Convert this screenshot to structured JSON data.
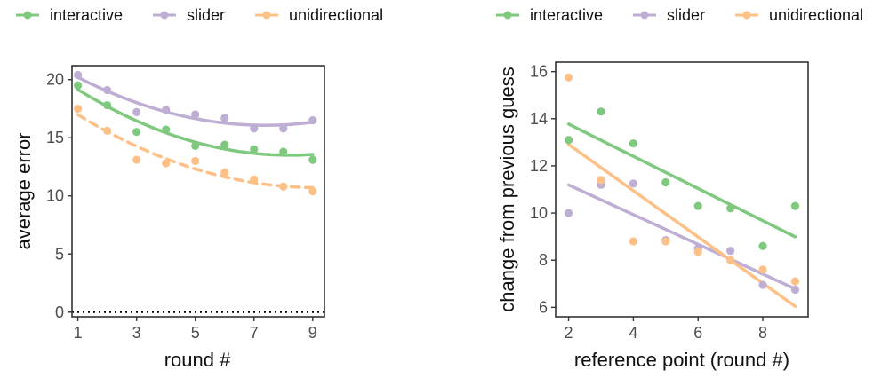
{
  "colors": {
    "interactive": "#7fc97f",
    "slider": "#beaed4",
    "unidirectional": "#fdc086"
  },
  "chart_data": [
    {
      "type": "scatter",
      "xlabel": "round #",
      "ylabel": "average error",
      "xlim": [
        0.8,
        9.4
      ],
      "ylim": [
        -0.4,
        21.2
      ],
      "xticks": [
        "1",
        "3",
        "5",
        "7",
        "9"
      ],
      "yticks": [
        "0",
        "5",
        "10",
        "15",
        "20"
      ],
      "reference_line": {
        "y": 0,
        "style": "dotted"
      },
      "legend": {
        "placement": "top",
        "entries": [
          "interactive",
          "slider",
          "unidirectional"
        ]
      },
      "series": [
        {
          "name": "interactive",
          "x": [
            1,
            2,
            3,
            4,
            5,
            6,
            7,
            8,
            9
          ],
          "y": [
            19.5,
            17.8,
            15.5,
            15.7,
            14.3,
            14.4,
            14.0,
            13.8,
            13.1
          ],
          "fit": "quadratic",
          "line_style": "solid"
        },
        {
          "name": "slider",
          "x": [
            1,
            2,
            3,
            4,
            5,
            6,
            7,
            8,
            9
          ],
          "y": [
            20.4,
            19.1,
            17.2,
            17.4,
            17.0,
            16.7,
            15.8,
            15.8,
            16.5
          ],
          "fit": "quadratic",
          "line_style": "solid"
        },
        {
          "name": "unidirectional",
          "x": [
            1,
            2,
            3,
            4,
            5,
            6,
            7,
            8,
            9
          ],
          "y": [
            17.5,
            15.6,
            13.1,
            12.8,
            13.0,
            12.0,
            11.4,
            10.8,
            10.4
          ],
          "fit": "quadratic",
          "line_style": "dashed"
        }
      ]
    },
    {
      "type": "scatter",
      "xlabel": "reference point (round #)",
      "ylabel": "change from previous guess",
      "xlim": [
        1.6,
        9.4
      ],
      "ylim": [
        5.6,
        16.4
      ],
      "xticks": [
        "2",
        "4",
        "6",
        "8"
      ],
      "yticks": [
        "6",
        "8",
        "10",
        "12",
        "14",
        "16"
      ],
      "legend": {
        "placement": "top",
        "entries": [
          "interactive",
          "slider",
          "unidirectional"
        ]
      },
      "series": [
        {
          "name": "interactive",
          "x": [
            2,
            3,
            4,
            5,
            6,
            7,
            8,
            9
          ],
          "y": [
            13.1,
            14.3,
            12.95,
            11.3,
            10.3,
            10.2,
            8.6,
            10.3
          ],
          "fit": "linear",
          "line_style": "solid"
        },
        {
          "name": "slider",
          "x": [
            2,
            3,
            4,
            5,
            6,
            7,
            8,
            9
          ],
          "y": [
            10.0,
            11.2,
            11.25,
            8.85,
            8.5,
            8.4,
            6.95,
            6.75
          ],
          "fit": "linear",
          "line_style": "solid"
        },
        {
          "name": "unidirectional",
          "x": [
            2,
            3,
            4,
            5,
            6,
            7,
            8,
            9
          ],
          "y": [
            15.75,
            11.4,
            8.8,
            8.8,
            8.35,
            8.0,
            7.6,
            7.1
          ],
          "fit": "linear",
          "line_style": "solid"
        }
      ]
    }
  ]
}
